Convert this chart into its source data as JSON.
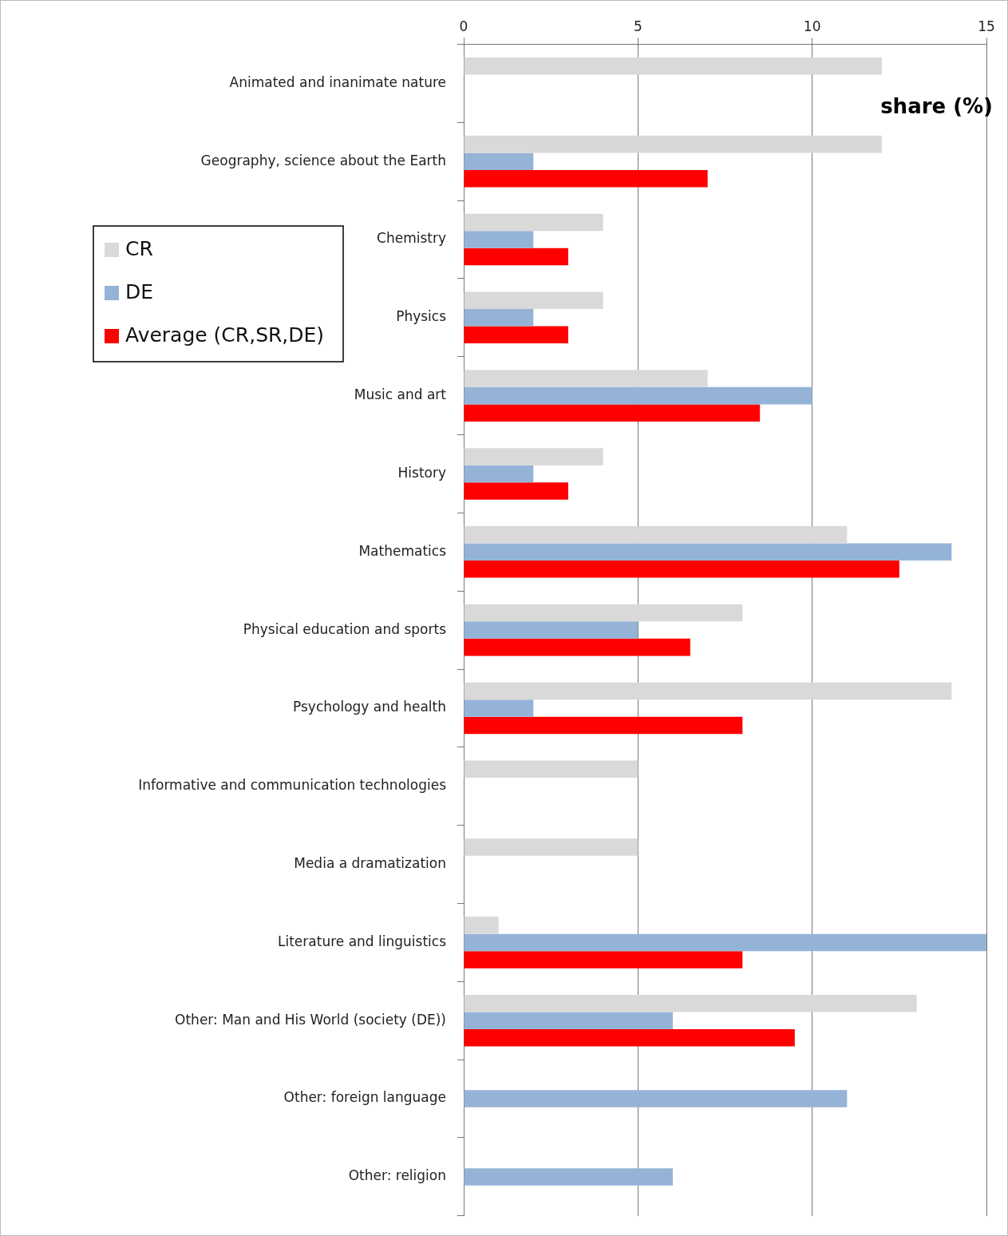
{
  "chart_data": {
    "type": "bar",
    "orientation": "horizontal",
    "xlabel": "share (%)",
    "categories": [
      "Animated and inanimate nature",
      "Geography, science about the Earth",
      "Chemistry",
      "Physics",
      "Music and art",
      "History",
      "Mathematics",
      "Physical education and sports",
      "Psychology and health",
      "Informative and communication technologies",
      "Media a dramatization",
      "Literature and linguistics",
      "Other: Man and His World (society (DE))",
      "Other: foreign language",
      "Other: religion"
    ],
    "series": [
      {
        "name": "CR",
        "color": "#d9d9d9",
        "values": [
          12,
          12,
          4,
          4,
          7,
          4,
          11,
          8,
          14,
          5,
          5,
          1,
          13,
          null,
          null
        ]
      },
      {
        "name": "DE",
        "color": "#95b3d7",
        "values": [
          null,
          2,
          2,
          2,
          10,
          2,
          14,
          5,
          2,
          null,
          null,
          15,
          6,
          11,
          6
        ]
      },
      {
        "name": "Average (CR,SR,DE)",
        "color": "#ff0000",
        "values": [
          null,
          7,
          3,
          3,
          8.5,
          3,
          12.5,
          6.5,
          8,
          null,
          null,
          8,
          9.5,
          null,
          null
        ]
      }
    ],
    "xlim": [
      0,
      15
    ],
    "xticks": [
      0,
      5,
      10,
      15
    ],
    "grid": "x",
    "legend": "top left"
  }
}
